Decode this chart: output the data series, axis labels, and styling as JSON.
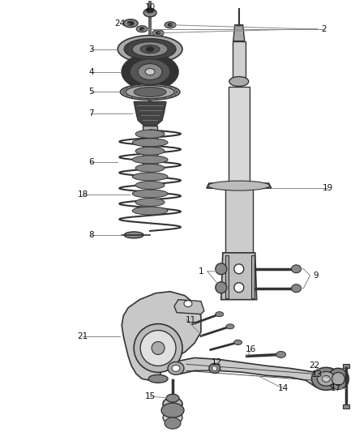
{
  "bg_color": "#ffffff",
  "fig_width": 4.38,
  "fig_height": 5.33,
  "dpi": 100,
  "line_color": "#333333",
  "label_line_color": "#888888",
  "dark_fill": "#2a2a2a",
  "mid_fill": "#888888",
  "light_fill": "#cccccc",
  "white_fill": "#ffffff",
  "label_font_size": 7.5
}
